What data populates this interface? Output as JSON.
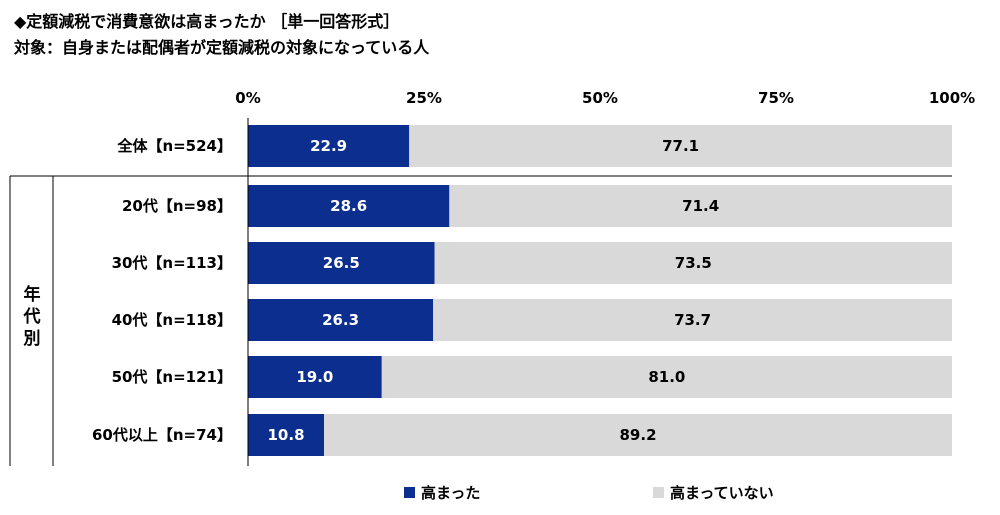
{
  "title": {
    "line1": "◆定額減税で消費意欲は高まったか ［単一回答形式］",
    "line2": "対象：自身または配偶者が定額減税の対象になっている人"
  },
  "colors": {
    "increased": "#0b2e8f",
    "not_increased": "#d9d9d9",
    "text_on_dark": "#ffffff",
    "text_on_light": "#000000"
  },
  "chart_data": {
    "type": "bar",
    "orientation": "horizontal",
    "stacked": true,
    "xlim": [
      0,
      100
    ],
    "x_ticks": [
      "0%",
      "25%",
      "50%",
      "75%",
      "100%"
    ],
    "x_tick_values": [
      0,
      25,
      50,
      75,
      100
    ],
    "group_label": "年代別",
    "categories": [
      "全体【n=524】",
      "20代【n=98】",
      "30代【n=113】",
      "40代【n=118】",
      "50代【n=121】",
      "60代以上【n=74】"
    ],
    "series": [
      {
        "name": "高まった",
        "values": [
          22.9,
          28.6,
          26.5,
          26.3,
          19.0,
          10.8
        ],
        "labels": [
          "22.9",
          "28.6",
          "26.5",
          "26.3",
          "19.0",
          "10.8"
        ]
      },
      {
        "name": "高まっていない",
        "values": [
          77.1,
          71.4,
          73.5,
          73.7,
          81.0,
          89.2
        ],
        "labels": [
          "77.1",
          "71.4",
          "73.5",
          "73.7",
          "81.0",
          "89.2"
        ]
      }
    ],
    "legend_position": "bottom"
  }
}
